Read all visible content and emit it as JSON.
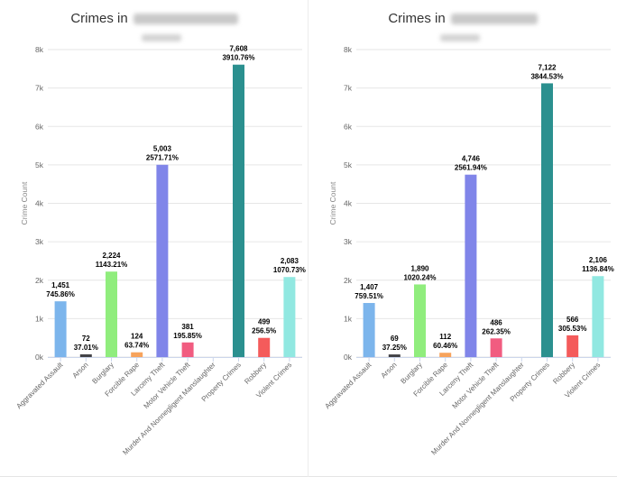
{
  "charts": [
    {
      "title_prefix": "Crimes in",
      "chart_data": {
        "type": "bar",
        "title": "Crimes in",
        "ylabel": "Crime Count",
        "xlabel": "",
        "ylim": [
          0,
          8000
        ],
        "yticks": [
          "0k",
          "1k",
          "2k",
          "3k",
          "4k",
          "5k",
          "6k",
          "7k",
          "8k"
        ],
        "grid": true,
        "categories": [
          "Aggravated Assault",
          "Arson",
          "Burglary",
          "Forcible Rape",
          "Larceny Theft",
          "Motor Vehicle Theft",
          "Murder And Nonnegligent Manslaughter",
          "Property Crimes",
          "Robbery",
          "Violent Crimes"
        ],
        "values": [
          1451,
          72,
          2224,
          124,
          5003,
          381,
          0,
          7608,
          499,
          2083
        ],
        "labels": [
          "1,451",
          "72",
          "2,224",
          "124",
          "5,003",
          "381",
          "",
          "7,608",
          "499",
          "2,083"
        ],
        "rates": [
          "745.86%",
          "37.01%",
          "1143.21%",
          "63.74%",
          "2571.71%",
          "195.85%",
          "",
          "3910.76%",
          "256.5%",
          "1070.73%"
        ],
        "colors": [
          "#7cb5ec",
          "#434348",
          "#90ed7d",
          "#f7a35c",
          "#8085e9",
          "#f15c80",
          "#e4d354",
          "#2b908f",
          "#f45b5b",
          "#91e8e1"
        ]
      }
    },
    {
      "title_prefix": "Crimes in",
      "chart_data": {
        "type": "bar",
        "title": "Crimes in",
        "ylabel": "Crime Count",
        "xlabel": "",
        "ylim": [
          0,
          8000
        ],
        "yticks": [
          "0k",
          "1k",
          "2k",
          "3k",
          "4k",
          "5k",
          "6k",
          "7k",
          "8k"
        ],
        "grid": true,
        "categories": [
          "Aggravated Assault",
          "Arson",
          "Burglary",
          "Forcible Rape",
          "Larceny Theft",
          "Motor Vehicle Theft",
          "Murder And Nonnegligent Manslaughter",
          "Property Crimes",
          "Robbery",
          "Violent Crimes"
        ],
        "values": [
          1407,
          69,
          1890,
          112,
          4746,
          486,
          0,
          7122,
          566,
          2106
        ],
        "labels": [
          "1,407",
          "69",
          "1,890",
          "112",
          "4,746",
          "486",
          "",
          "7,122",
          "566",
          "2,106"
        ],
        "rates": [
          "759.51%",
          "37.25%",
          "1020.24%",
          "60.46%",
          "2561.94%",
          "262.35%",
          "",
          "3844.53%",
          "305.53%",
          "1136.84%"
        ],
        "colors": [
          "#7cb5ec",
          "#434348",
          "#90ed7d",
          "#f7a35c",
          "#8085e9",
          "#f15c80",
          "#e4d354",
          "#2b908f",
          "#f45b5b",
          "#91e8e1"
        ]
      }
    }
  ]
}
